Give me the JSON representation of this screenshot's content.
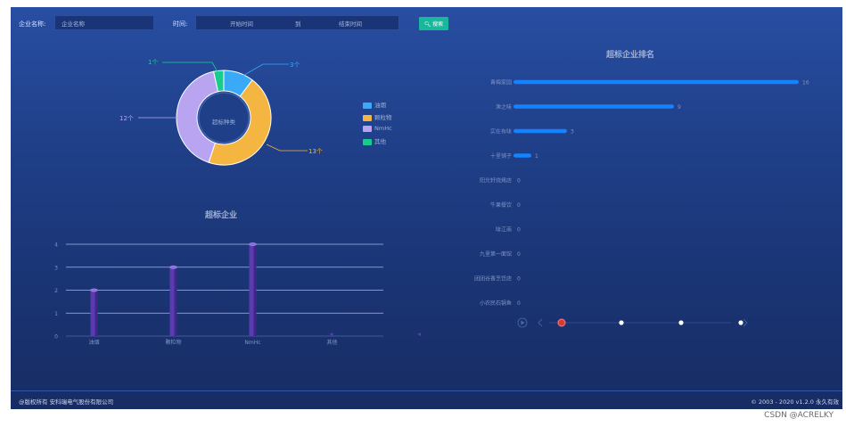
{
  "filter": {
    "company_label": "企业名称:",
    "company_placeholder": "企业名称",
    "time_label": "时间:",
    "start_placeholder": "开始时间",
    "range_sep": "到",
    "end_placeholder": "结束时间",
    "search_label": "搜索"
  },
  "donut": {
    "center_label": "超标种类",
    "callouts": [
      "1个",
      "3个",
      "12个",
      "13个"
    ],
    "colors": {
      "油烟": "#3aa9f8",
      "颗粒物": "#f4b541",
      "NmHc": "#b9a4f2",
      "其他": "#16cd8e"
    }
  },
  "bar_title": "超标企业",
  "rank_title": "超标企业排名",
  "footer": {
    "left": "@版权所有 安科瑞电气股份有限公司",
    "right": "© 2003 - 2020  v1.2.0  永久有效"
  },
  "watermark": "CSDN @ACRELKY",
  "timeline": {
    "current_index": 0,
    "points": 4
  },
  "chart_data": [
    {
      "type": "pie",
      "labels": [
        "油烟",
        "颗粒物",
        "NmHc",
        "其他"
      ],
      "values": [
        3,
        13,
        12,
        1
      ],
      "title": "超标种类"
    },
    {
      "type": "bar",
      "title": "超标企业",
      "categories": [
        "油烟",
        "颗粒物",
        "NmHc",
        "其他"
      ],
      "values": [
        2,
        3,
        4,
        0
      ],
      "ylim": [
        0,
        4
      ],
      "yticks": [
        "0",
        "1",
        "2",
        "3",
        "4"
      ],
      "grid": true
    },
    {
      "type": "bar",
      "title": "超标企业排名",
      "orientation": "horizontal",
      "categories": [
        "青梅家园",
        "渔之味",
        "实在有味",
        "十里铺子",
        "阳光轩烧烤店",
        "牛果餐饮",
        "味江南",
        "九里第一面馆",
        "团团谷香烹饪店",
        "小农民石锅鱼"
      ],
      "values": [
        16,
        9,
        3,
        1,
        0,
        0,
        0,
        0,
        0,
        0
      ],
      "xlim": [
        0,
        16
      ]
    }
  ]
}
